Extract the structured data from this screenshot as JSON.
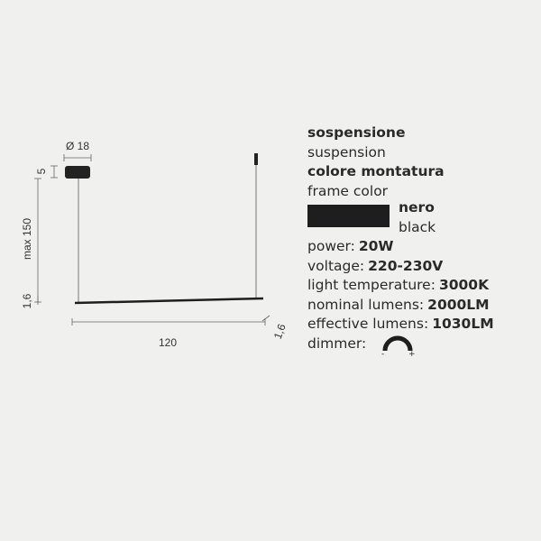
{
  "drawing": {
    "diameter": "Ø 18",
    "canopy_height": "5",
    "max_height": "max 150",
    "bar_thickness": "1,6",
    "length": "120",
    "bar_depth": "1,6"
  },
  "specs": {
    "type_label": "sospensione",
    "type_translation": "suspension",
    "frame_label": "colore montatura",
    "frame_translation": "frame color",
    "color_name": "nero",
    "color_translation": "black",
    "rows": [
      {
        "label": "power:",
        "value": "20W"
      },
      {
        "label": "voltage:",
        "value": "220-230V"
      },
      {
        "label": "light temperature:",
        "value": "3000K"
      },
      {
        "label": "nominal lumens:",
        "value": "2000LM"
      },
      {
        "label": "effective lumens:",
        "value": "1030LM"
      }
    ],
    "dimmer": {
      "label": "dimmer:",
      "minus": "-",
      "plus": "+"
    }
  }
}
